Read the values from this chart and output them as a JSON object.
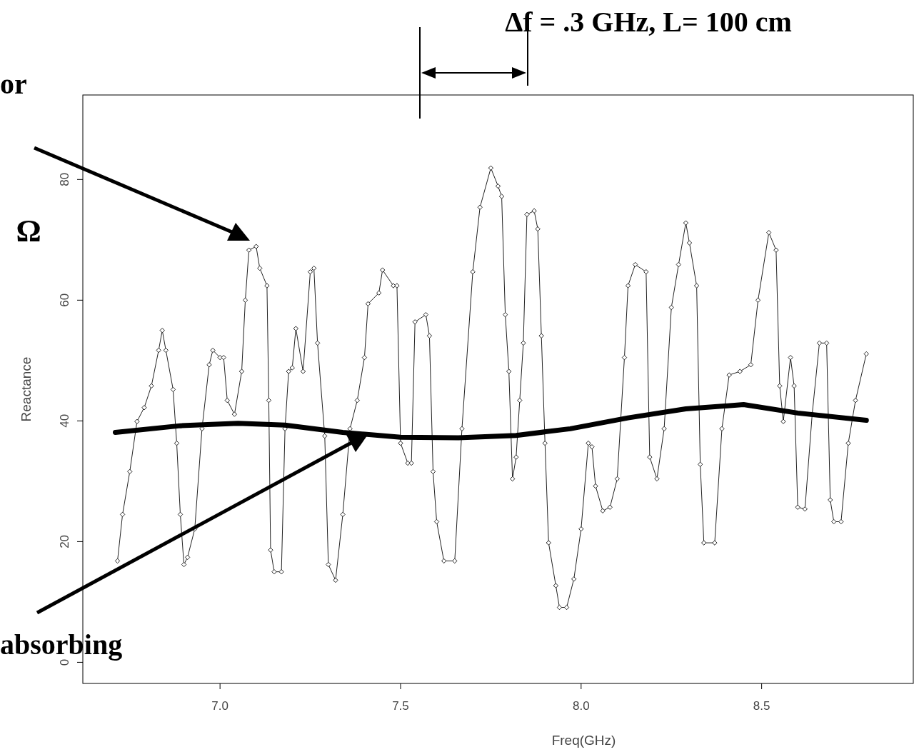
{
  "chart_data": {
    "type": "line",
    "title": "Δf = .3 GHz, L= 100 cm",
    "xlabel": "Freq(GHz)",
    "ylabel": "Reactance",
    "annotations": [
      "or",
      "Ω",
      "absorbing"
    ],
    "xlim": [
      6.62,
      8.92
    ],
    "ylim": [
      -3.5,
      94
    ],
    "xticks": [
      {
        "value": 7,
        "label": "7.0"
      },
      {
        "value": 7.5,
        "label": "7.5"
      },
      {
        "value": 8,
        "label": "8.0"
      },
      {
        "value": 8.5,
        "label": "8.5"
      }
    ],
    "yticks": [
      0,
      20,
      40,
      60,
      80
    ],
    "grid": false,
    "series": [
      {
        "type": "line",
        "marker": "diamond",
        "color": "#222222",
        "x": [
          6.716,
          6.73,
          6.75,
          6.77,
          6.79,
          6.81,
          6.83,
          6.84,
          6.85,
          6.87,
          6.88,
          6.89,
          6.9,
          6.91,
          6.93,
          6.95,
          6.97,
          6.98,
          7.0,
          7.01,
          7.02,
          7.04,
          7.06,
          7.07,
          7.08,
          7.1,
          7.11,
          7.13,
          7.135,
          7.14,
          7.15,
          7.17,
          7.18,
          7.19,
          7.2,
          7.21,
          7.23,
          7.25,
          7.26,
          7.27,
          7.29,
          7.3,
          7.32,
          7.34,
          7.36,
          7.38,
          7.4,
          7.41,
          7.44,
          7.45,
          7.48,
          7.49,
          7.5,
          7.52,
          7.53,
          7.54,
          7.57,
          7.58,
          7.59,
          7.6,
          7.62,
          7.65,
          7.67,
          7.7,
          7.72,
          7.75,
          7.77,
          7.78,
          7.79,
          7.8,
          7.81,
          7.82,
          7.83,
          7.84,
          7.85,
          7.87,
          7.88,
          7.89,
          7.9,
          7.91,
          7.93,
          7.94,
          7.96,
          7.98,
          8.0,
          8.02,
          8.03,
          8.04,
          8.06,
          8.08,
          8.1,
          8.12,
          8.13,
          8.15,
          8.18,
          8.19,
          8.21,
          8.23,
          8.25,
          8.27,
          8.29,
          8.3,
          8.32,
          8.33,
          8.34,
          8.37,
          8.39,
          8.41,
          8.44,
          8.47,
          8.49,
          8.52,
          8.54,
          8.55,
          8.56,
          8.58,
          8.59,
          8.6,
          8.62,
          8.64,
          8.66,
          8.68,
          8.69,
          8.7,
          8.72,
          8.74,
          8.76,
          8.79
        ],
        "values": [
          16.8,
          24.5,
          31.6,
          39.9,
          42.2,
          45.8,
          51.7,
          55,
          51.7,
          45.2,
          36.3,
          24.5,
          16.2,
          17.4,
          22.1,
          38.7,
          49.3,
          51.7,
          50.5,
          50.5,
          43.4,
          41.1,
          48.2,
          60,
          68.3,
          68.9,
          65.3,
          62.4,
          43.4,
          18.6,
          15,
          15,
          38.7,
          48.2,
          48.8,
          55.3,
          48.2,
          64.7,
          65.3,
          52.9,
          37.5,
          16.2,
          13.6,
          24.5,
          38.7,
          43.4,
          50.5,
          59.4,
          61.2,
          65,
          62.4,
          62.4,
          36.3,
          33,
          33,
          56.4,
          57.6,
          54.1,
          31.6,
          23.3,
          16.8,
          16.8,
          38.7,
          64.7,
          75.4,
          81.9,
          78.9,
          77.2,
          57.6,
          48.2,
          30.4,
          34,
          43.4,
          52.9,
          74.2,
          74.8,
          71.8,
          54.1,
          36.3,
          19.8,
          12.7,
          9.1,
          9.1,
          13.8,
          22.1,
          36.3,
          35.7,
          29.2,
          25.1,
          25.7,
          30.4,
          50.5,
          62.4,
          65.9,
          64.7,
          34,
          30.4,
          38.7,
          58.8,
          65.9,
          72.8,
          69.5,
          62.4,
          32.8,
          19.8,
          19.8,
          38.7,
          47.6,
          48.2,
          49.3,
          60,
          71.2,
          68.3,
          45.8,
          39.9,
          50.5,
          45.8,
          25.7,
          25.4,
          41.1,
          52.9,
          52.9,
          26.9,
          23.3,
          23.3,
          36.3,
          43.4,
          51.1
        ]
      },
      {
        "type": "line",
        "marker": "none",
        "color": "#000000",
        "x": [
          6.71,
          6.89,
          7.05,
          7.18,
          7.34,
          7.5,
          7.66,
          7.82,
          7.97,
          8.13,
          8.29,
          8.45,
          8.6,
          8.79
        ],
        "values": [
          38.1,
          39.2,
          39.6,
          39.3,
          38.1,
          37.3,
          37.2,
          37.6,
          38.7,
          40.5,
          42,
          42.7,
          41.3,
          40.1
        ]
      }
    ]
  }
}
